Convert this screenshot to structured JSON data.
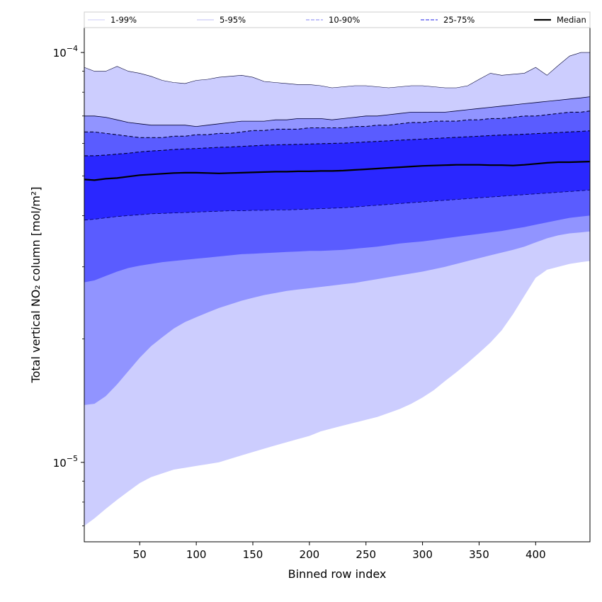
{
  "chart_data": {
    "type": "area",
    "xlabel": "Binned row index",
    "ylabel": "Total vertical NO₂ column [mol/m²]",
    "xlim": [
      1,
      448
    ],
    "ylim": [
      6.4e-06,
      0.000115
    ],
    "yscale": "log",
    "grid": false,
    "legend_position": "top",
    "x_ticks": [
      50,
      100,
      150,
      200,
      250,
      300,
      350,
      400
    ],
    "x_tick_labels": [
      "50",
      "100",
      "150",
      "200",
      "250",
      "300",
      "350",
      "400"
    ],
    "y_ticks": [
      1e-05,
      0.0001
    ],
    "y_tick_labels": [
      {
        "base": "10",
        "exp": "−5"
      },
      {
        "base": "10",
        "exp": "−4"
      }
    ],
    "x": [
      1,
      10,
      20,
      30,
      40,
      50,
      60,
      70,
      80,
      90,
      100,
      110,
      120,
      130,
      140,
      150,
      160,
      170,
      180,
      190,
      200,
      210,
      220,
      230,
      240,
      250,
      260,
      270,
      280,
      290,
      300,
      310,
      320,
      330,
      340,
      350,
      360,
      370,
      380,
      390,
      400,
      410,
      420,
      430,
      440,
      448
    ],
    "bands": [
      {
        "name": "1-99%",
        "color": "#cccdfe",
        "line_color": "#bbbbf5",
        "line_style": "solid",
        "lower": [
          7e-06,
          7.3e-06,
          7.7e-06,
          8.1e-06,
          8.5e-06,
          8.9e-06,
          9.2e-06,
          9.4e-06,
          9.6e-06,
          9.7e-06,
          9.8e-06,
          9.9e-06,
          1e-05,
          1.02e-05,
          1.04e-05,
          1.06e-05,
          1.08e-05,
          1.1e-05,
          1.12e-05,
          1.14e-05,
          1.16e-05,
          1.19e-05,
          1.21e-05,
          1.23e-05,
          1.25e-05,
          1.27e-05,
          1.29e-05,
          1.32e-05,
          1.35e-05,
          1.39e-05,
          1.44e-05,
          1.5e-05,
          1.58e-05,
          1.66e-05,
          1.75e-05,
          1.85e-05,
          1.96e-05,
          2.1e-05,
          2.3e-05,
          2.55e-05,
          2.82e-05,
          2.95e-05,
          3e-05,
          3.05e-05,
          3.08e-05,
          3.1e-05
        ],
        "upper": [
          9.2e-05,
          9e-05,
          9e-05,
          9.25e-05,
          9e-05,
          8.9e-05,
          8.75e-05,
          8.55e-05,
          8.45e-05,
          8.4e-05,
          8.55e-05,
          8.6e-05,
          8.7e-05,
          8.75e-05,
          8.8e-05,
          8.7e-05,
          8.5e-05,
          8.45e-05,
          8.4e-05,
          8.35e-05,
          8.35e-05,
          8.3e-05,
          8.2e-05,
          8.25e-05,
          8.3e-05,
          8.3e-05,
          8.25e-05,
          8.2e-05,
          8.25e-05,
          8.3e-05,
          8.3e-05,
          8.25e-05,
          8.2e-05,
          8.2e-05,
          8.3e-05,
          8.6e-05,
          8.9e-05,
          8.8e-05,
          8.85e-05,
          8.9e-05,
          9.2e-05,
          8.8e-05,
          9.3e-05,
          9.8e-05,
          0.0001,
          0.0001
        ]
      },
      {
        "name": "5-95%",
        "color": "#9194ff",
        "line_color": "#bbbbf5",
        "line_style": "solid",
        "lower": [
          1.38e-05,
          1.39e-05,
          1.45e-05,
          1.55e-05,
          1.67e-05,
          1.8e-05,
          1.92e-05,
          2.02e-05,
          2.12e-05,
          2.2e-05,
          2.26e-05,
          2.32e-05,
          2.38e-05,
          2.43e-05,
          2.48e-05,
          2.52e-05,
          2.56e-05,
          2.59e-05,
          2.62e-05,
          2.64e-05,
          2.66e-05,
          2.68e-05,
          2.7e-05,
          2.72e-05,
          2.74e-05,
          2.77e-05,
          2.8e-05,
          2.83e-05,
          2.86e-05,
          2.89e-05,
          2.92e-05,
          2.96e-05,
          3e-05,
          3.05e-05,
          3.1e-05,
          3.15e-05,
          3.2e-05,
          3.25e-05,
          3.3e-05,
          3.36e-05,
          3.44e-05,
          3.52e-05,
          3.58e-05,
          3.62e-05,
          3.64e-05,
          3.66e-05
        ],
        "upper": [
          7e-05,
          7e-05,
          6.95e-05,
          6.85e-05,
          6.75e-05,
          6.7e-05,
          6.65e-05,
          6.65e-05,
          6.65e-05,
          6.65e-05,
          6.6e-05,
          6.65e-05,
          6.7e-05,
          6.75e-05,
          6.8e-05,
          6.8e-05,
          6.8e-05,
          6.85e-05,
          6.85e-05,
          6.9e-05,
          6.9e-05,
          6.9e-05,
          6.85e-05,
          6.9e-05,
          6.95e-05,
          7e-05,
          7e-05,
          7.05e-05,
          7.1e-05,
          7.15e-05,
          7.15e-05,
          7.15e-05,
          7.15e-05,
          7.2e-05,
          7.25e-05,
          7.3e-05,
          7.35e-05,
          7.4e-05,
          7.45e-05,
          7.5e-05,
          7.55e-05,
          7.6e-05,
          7.65e-05,
          7.7e-05,
          7.75e-05,
          7.8e-05
        ]
      },
      {
        "name": "10-90%",
        "color": "#5a5cff",
        "line_color": "#9a9cf5",
        "line_style": "dashed",
        "lower": [
          2.75e-05,
          2.78e-05,
          2.85e-05,
          2.92e-05,
          2.98e-05,
          3.02e-05,
          3.05e-05,
          3.08e-05,
          3.1e-05,
          3.12e-05,
          3.14e-05,
          3.16e-05,
          3.18e-05,
          3.2e-05,
          3.22e-05,
          3.23e-05,
          3.24e-05,
          3.25e-05,
          3.26e-05,
          3.27e-05,
          3.28e-05,
          3.28e-05,
          3.29e-05,
          3.3e-05,
          3.32e-05,
          3.34e-05,
          3.36e-05,
          3.39e-05,
          3.42e-05,
          3.44e-05,
          3.46e-05,
          3.49e-05,
          3.52e-05,
          3.55e-05,
          3.58e-05,
          3.61e-05,
          3.64e-05,
          3.67e-05,
          3.71e-05,
          3.75e-05,
          3.8e-05,
          3.85e-05,
          3.9e-05,
          3.95e-05,
          3.98e-05,
          4e-05
        ],
        "upper": [
          6.4e-05,
          6.4e-05,
          6.35e-05,
          6.3e-05,
          6.25e-05,
          6.2e-05,
          6.2e-05,
          6.2e-05,
          6.25e-05,
          6.25e-05,
          6.3e-05,
          6.3e-05,
          6.35e-05,
          6.35e-05,
          6.4e-05,
          6.45e-05,
          6.45e-05,
          6.5e-05,
          6.5e-05,
          6.5e-05,
          6.55e-05,
          6.55e-05,
          6.55e-05,
          6.55e-05,
          6.6e-05,
          6.6e-05,
          6.65e-05,
          6.65e-05,
          6.7e-05,
          6.75e-05,
          6.75e-05,
          6.8e-05,
          6.8e-05,
          6.8e-05,
          6.85e-05,
          6.85e-05,
          6.9e-05,
          6.9e-05,
          6.95e-05,
          7e-05,
          7e-05,
          7.05e-05,
          7.1e-05,
          7.15e-05,
          7.15e-05,
          7.2e-05
        ]
      },
      {
        "name": "25-75%",
        "color": "#2a27ff",
        "line_color": "#6a6cf0",
        "line_style": "dashed",
        "lower": [
          3.9e-05,
          3.92e-05,
          3.95e-05,
          3.98e-05,
          4e-05,
          4.02e-05,
          4.04e-05,
          4.05e-05,
          4.06e-05,
          4.07e-05,
          4.08e-05,
          4.09e-05,
          4.1e-05,
          4.11e-05,
          4.11e-05,
          4.12e-05,
          4.12e-05,
          4.13e-05,
          4.13e-05,
          4.14e-05,
          4.15e-05,
          4.16e-05,
          4.17e-05,
          4.18e-05,
          4.2e-05,
          4.22e-05,
          4.24e-05,
          4.26e-05,
          4.28e-05,
          4.3e-05,
          4.32e-05,
          4.34e-05,
          4.36e-05,
          4.38e-05,
          4.4e-05,
          4.42e-05,
          4.44e-05,
          4.46e-05,
          4.48e-05,
          4.5e-05,
          4.52e-05,
          4.54e-05,
          4.56e-05,
          4.58e-05,
          4.6e-05,
          4.62e-05
        ],
        "upper": [
          5.6e-05,
          5.6e-05,
          5.62e-05,
          5.65e-05,
          5.68e-05,
          5.72e-05,
          5.75e-05,
          5.77e-05,
          5.8e-05,
          5.82e-05,
          5.83e-05,
          5.85e-05,
          5.87e-05,
          5.88e-05,
          5.9e-05,
          5.92e-05,
          5.94e-05,
          5.95e-05,
          5.96e-05,
          5.97e-05,
          5.98e-05,
          5.99e-05,
          6e-05,
          6.01e-05,
          6.03e-05,
          6.05e-05,
          6.07e-05,
          6.09e-05,
          6.11e-05,
          6.13e-05,
          6.15e-05,
          6.17e-05,
          6.19e-05,
          6.21e-05,
          6.23e-05,
          6.25e-05,
          6.27e-05,
          6.29e-05,
          6.3e-05,
          6.32e-05,
          6.34e-05,
          6.36e-05,
          6.38e-05,
          6.4e-05,
          6.42e-05,
          6.44e-05
        ]
      }
    ],
    "series": [
      {
        "name": "Median",
        "color": "#000000",
        "values": [
          4.9e-05,
          4.88e-05,
          4.92e-05,
          4.94e-05,
          4.98e-05,
          5.02e-05,
          5.04e-05,
          5.06e-05,
          5.08e-05,
          5.09e-05,
          5.09e-05,
          5.08e-05,
          5.07e-05,
          5.08e-05,
          5.09e-05,
          5.1e-05,
          5.11e-05,
          5.12e-05,
          5.12e-05,
          5.13e-05,
          5.13e-05,
          5.14e-05,
          5.14e-05,
          5.15e-05,
          5.17e-05,
          5.19e-05,
          5.21e-05,
          5.23e-05,
          5.25e-05,
          5.27e-05,
          5.29e-05,
          5.3e-05,
          5.31e-05,
          5.32e-05,
          5.32e-05,
          5.32e-05,
          5.31e-05,
          5.31e-05,
          5.3e-05,
          5.32e-05,
          5.35e-05,
          5.38e-05,
          5.4e-05,
          5.4e-05,
          5.41e-05,
          5.42e-05
        ]
      }
    ],
    "legend": [
      {
        "label": "1-99%",
        "color": "#bbbbf5",
        "style": "solid",
        "width": 0.7
      },
      {
        "label": "5-95%",
        "color": "#a8a8f0",
        "style": "solid",
        "width": 0.7
      },
      {
        "label": "10-90%",
        "color": "#9a9cf5",
        "style": "dashed",
        "width": 1.3
      },
      {
        "label": "25-75%",
        "color": "#6a6cf0",
        "style": "dashed",
        "width": 1.6
      },
      {
        "label": "Median",
        "color": "#000000",
        "style": "solid",
        "width": 2.2
      }
    ]
  }
}
